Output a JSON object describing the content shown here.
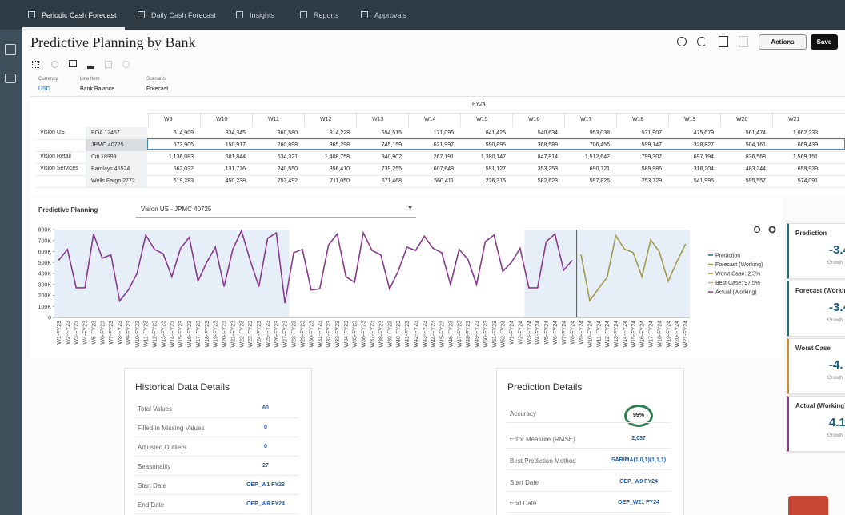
{
  "nav": {
    "tabs": [
      "Periodic Cash Forecast",
      "Daily Cash Forecast",
      "Insights",
      "Reports",
      "Approvals"
    ]
  },
  "header": {
    "title": "Predictive Planning by Bank",
    "actions": "Actions",
    "save": "Save"
  },
  "pov": [
    {
      "label": "Currency",
      "value": "USD"
    },
    {
      "label": "Line Item",
      "value": "Bank Balance"
    },
    {
      "label": "Scenario",
      "value": "Forecast"
    }
  ],
  "grid": {
    "period": "FY24",
    "columns": [
      "W9",
      "W10",
      "W11",
      "W12",
      "W13",
      "W14",
      "W15",
      "W16",
      "W17",
      "W18",
      "W19",
      "W20",
      "W21"
    ],
    "rows": [
      {
        "entity": "Vision US",
        "bank": "BOA 12457",
        "values": [
          "614,909",
          "334,345",
          "360,580",
          "814,228",
          "554,515",
          "171,095",
          "841,425",
          "540,634",
          "953,038",
          "531,907",
          "475,679",
          "561,474",
          "1,062,233"
        ]
      },
      {
        "entity": null,
        "bank": "JPMC 40725",
        "values": [
          "573,905",
          "150,917",
          "260,898",
          "365,298",
          "745,159",
          "621,997",
          "590,895",
          "368,589",
          "706,456",
          "599,147",
          "328,827",
          "504,161",
          "669,439"
        ]
      },
      {
        "entity": "Vision Retail",
        "bank": "Citi 18999",
        "values": [
          "1,136,083",
          "581,844",
          "634,321",
          "1,408,758",
          "940,902",
          "267,191",
          "1,380,147",
          "847,814",
          "1,512,642",
          "799,307",
          "697,194",
          "836,568",
          "1,569,151"
        ]
      },
      {
        "entity": "Vision Services",
        "bank": "Barclays 45524",
        "values": [
          "562,032",
          "131,776",
          "240,550",
          "356,410",
          "739,255",
          "607,648",
          "591,127",
          "353,253",
          "690,721",
          "589,986",
          "318,204",
          "483,244",
          "659,939"
        ]
      },
      {
        "entity": null,
        "bank": "Wells Fargo 2772",
        "values": [
          "619,283",
          "450,238",
          "753,492",
          "711,050",
          "671,468",
          "560,411",
          "226,315",
          "582,623",
          "597,826",
          "253,729",
          "541,995",
          "595,557",
          "574,091"
        ]
      }
    ]
  },
  "chart_section": {
    "label": "Predictive Planning",
    "selector": "Vision US - JPMC 40725"
  },
  "chart_data": {
    "type": "line",
    "categories": [
      "W1-FY23",
      "W2-FY23",
      "W3-FY23",
      "W4-FY23",
      "W5-FY23",
      "W6-FY23",
      "W7-FY23",
      "W8-FY23",
      "W9-FY23",
      "W10-FY23",
      "W11-FY23",
      "W12-FY23",
      "W13-FY23",
      "W14-FY23",
      "W15-FY23",
      "W16-FY23",
      "W17-FY23",
      "W18-FY23",
      "W19-FY23",
      "W20-FY23",
      "W21-FY23",
      "W22-FY23",
      "W23-FY23",
      "W24-FY23",
      "W25-FY23",
      "W26-FY23",
      "W27-FY23",
      "W28-FY23",
      "W29-FY23",
      "W30-FY23",
      "W31-FY23",
      "W32-FY23",
      "W33-FY23",
      "W34-FY23",
      "W35-FY23",
      "W36-FY23",
      "W37-FY23",
      "W38-FY23",
      "W39-FY23",
      "W40-FY23",
      "W41-FY23",
      "W42-FY23",
      "W43-FY23",
      "W44-FY23",
      "W45-FY23",
      "W46-FY23",
      "W47-FY23",
      "W48-FY23",
      "W49-FY23",
      "W50-FY23",
      "W51-FY23",
      "W52-FY23",
      "W1-FY24",
      "W2-FY24",
      "W3-FY24",
      "W4-FY24",
      "W5-FY24",
      "W6-FY24",
      "W7-FY24",
      "W8-FY24",
      "W9-FY24",
      "W10-FY24",
      "W11-FY24",
      "W12-FY24",
      "W13-FY24",
      "W14-FY24",
      "W15-FY24",
      "W16-FY24",
      "W17-FY24",
      "W18-FY24",
      "W19-FY24",
      "W20-FY24",
      "W21-FY24"
    ],
    "series": [
      {
        "name": "Prediction",
        "color": "#1f6f7f",
        "values": [
          null,
          null,
          null,
          null,
          null,
          null,
          null,
          null,
          null,
          null,
          null,
          null,
          null,
          null,
          null,
          null,
          null,
          null,
          null,
          null,
          null,
          null,
          null,
          null,
          null,
          null,
          null,
          null,
          null,
          null,
          null,
          null,
          null,
          null,
          null,
          null,
          null,
          null,
          null,
          null,
          null,
          null,
          null,
          null,
          null,
          null,
          null,
          null,
          null,
          null,
          null,
          null,
          null,
          null,
          null,
          null,
          null,
          null,
          null,
          null,
          null,
          null,
          null,
          null,
          null,
          null,
          null,
          null,
          null,
          null,
          null,
          null,
          null
        ]
      },
      {
        "name": "Forecast (Working)",
        "color": "#a39a4e",
        "values": [
          null,
          null,
          null,
          null,
          null,
          null,
          null,
          null,
          null,
          null,
          null,
          null,
          null,
          null,
          null,
          null,
          null,
          null,
          null,
          null,
          null,
          null,
          null,
          null,
          null,
          null,
          null,
          null,
          null,
          null,
          null,
          null,
          null,
          null,
          null,
          null,
          null,
          null,
          null,
          null,
          null,
          null,
          null,
          null,
          null,
          null,
          null,
          null,
          null,
          null,
          null,
          null,
          null,
          null,
          null,
          null,
          null,
          null,
          null,
          null,
          573905,
          150917,
          260898,
          365298,
          745159,
          621997,
          590895,
          368589,
          706456,
          599147,
          328827,
          504161,
          669439
        ]
      },
      {
        "name": "Worst Case: 2.5%",
        "color": "#d08a2a",
        "values": [
          null,
          null,
          null,
          null,
          null,
          null,
          null,
          null,
          null,
          null,
          null,
          null,
          null,
          null,
          null,
          null,
          null,
          null,
          null,
          null,
          null,
          null,
          null,
          null,
          null,
          null,
          null,
          null,
          null,
          null,
          null,
          null,
          null,
          null,
          null,
          null,
          null,
          null,
          null,
          null,
          null,
          null,
          null,
          null,
          null,
          null,
          null,
          null,
          null,
          null,
          null,
          null,
          null,
          null,
          null,
          null,
          null,
          null,
          null,
          null,
          null,
          null,
          null,
          null,
          null,
          null,
          null,
          null,
          null,
          null,
          null,
          null,
          null
        ]
      },
      {
        "name": "Best Case: 97.5%",
        "color": "#c9a66b",
        "values": [
          null,
          null,
          null,
          null,
          null,
          null,
          null,
          null,
          null,
          null,
          null,
          null,
          null,
          null,
          null,
          null,
          null,
          null,
          null,
          null,
          null,
          null,
          null,
          null,
          null,
          null,
          null,
          null,
          null,
          null,
          null,
          null,
          null,
          null,
          null,
          null,
          null,
          null,
          null,
          null,
          null,
          null,
          null,
          null,
          null,
          null,
          null,
          null,
          null,
          null,
          null,
          null,
          null,
          null,
          null,
          null,
          null,
          null,
          null,
          null,
          null,
          null,
          null,
          null,
          null,
          null,
          null,
          null,
          null,
          null,
          null,
          null,
          null
        ]
      },
      {
        "name": "Actual (Working)",
        "color": "#8a3a8f",
        "values": [
          520000,
          620000,
          270000,
          270000,
          760000,
          540000,
          570000,
          150000,
          250000,
          400000,
          750000,
          620000,
          580000,
          370000,
          630000,
          730000,
          330000,
          500000,
          640000,
          280000,
          620000,
          790000,
          520000,
          280000,
          720000,
          770000,
          130000,
          590000,
          620000,
          250000,
          260000,
          660000,
          760000,
          370000,
          320000,
          770000,
          610000,
          570000,
          260000,
          420000,
          640000,
          610000,
          740000,
          630000,
          590000,
          300000,
          620000,
          530000,
          300000,
          690000,
          750000,
          420000,
          500000,
          630000,
          270000,
          270000,
          690000,
          760000,
          430000,
          520000,
          null,
          null,
          null,
          null,
          null,
          null,
          null,
          null,
          null,
          null,
          null,
          null,
          null
        ]
      }
    ],
    "ylim": [
      0,
      800000
    ],
    "yticks": [
      0,
      {
        "value": 100000,
        "label": "100K"
      },
      {
        "value": 200000,
        "label": "200K"
      },
      {
        "value": 300000,
        "label": "300K"
      },
      {
        "value": 400000,
        "label": "400K"
      },
      {
        "value": 500000,
        "label": "500K"
      },
      {
        "value": 600000,
        "label": "600K"
      },
      {
        "value": 700000,
        "label": "700K"
      },
      {
        "value": 800000,
        "label": "800K"
      }
    ],
    "legend": "right"
  },
  "cards": [
    {
      "title": "Prediction",
      "value": "-3.4",
      "sub": "Growth",
      "color": "#1f6f7f"
    },
    {
      "title": "Forecast (Working)",
      "value": "-3.4",
      "sub": "Growth",
      "color": "#1f6f7f"
    },
    {
      "title": "Worst Case",
      "value": "-4.",
      "sub": "Growth",
      "color": "#d08a2a"
    },
    {
      "title": "Actual (Working)",
      "value": "4.1",
      "sub": "Growth",
      "color": "#8a3a8f"
    }
  ],
  "historical": {
    "title": "Historical Data Details",
    "rows": [
      [
        "Total Values",
        "60"
      ],
      [
        "Filled-in Missing Values",
        "0"
      ],
      [
        "Adjusted Outliers",
        "0"
      ],
      [
        "Seasonality",
        "27"
      ],
      [
        "Start Date",
        "OEP_W1 FY23"
      ],
      [
        "End Date",
        "OEP_W8 FY24"
      ]
    ]
  },
  "prediction": {
    "title": "Prediction Details",
    "rows": [
      [
        "Accuracy",
        "99%"
      ],
      [
        "Error Measure (RMSE)",
        "2,037"
      ],
      [
        "Best Prediction Method",
        "SARIMA(1,0,1)(1,1,1)"
      ],
      [
        "Start Date",
        "OEP_W9 FY24"
      ],
      [
        "End Date",
        "OEP_W21 FY24"
      ]
    ]
  }
}
